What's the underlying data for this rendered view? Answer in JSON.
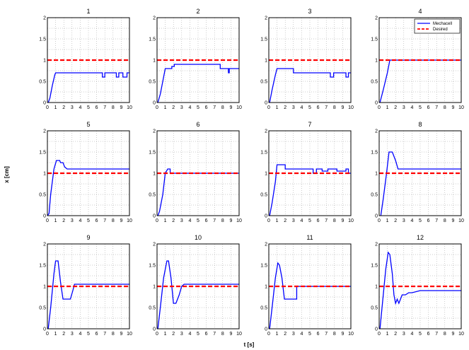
{
  "figure": {
    "xlabel": "t [s]",
    "ylabel": "x [cm]"
  },
  "legend": {
    "entries": [
      {
        "label": "Mechacell",
        "color": "#0000ff",
        "style": "solid"
      },
      {
        "label": "Desired",
        "color": "#ff0000",
        "style": "dashed"
      }
    ],
    "placement": "top-right of subplot 4"
  },
  "chart_data": [
    {
      "type": "line",
      "title": "1",
      "xlim": [
        0,
        10
      ],
      "ylim": [
        0,
        2
      ],
      "xticks": [
        "0",
        "1",
        "2",
        "3",
        "4",
        "5",
        "6",
        "7",
        "8",
        "9",
        "10"
      ],
      "yticks": [
        "0",
        "0.5",
        "1",
        "1.5",
        "2"
      ],
      "grid": true,
      "series": [
        {
          "name": "Mechacell",
          "color": "#0000ff",
          "x": [
            0.1,
            0.3,
            0.6,
            0.9,
            1.0,
            1.1,
            6.7,
            6.7,
            7.0,
            7.0,
            7.2,
            7.2,
            8.4,
            8.4,
            8.7,
            8.7,
            9.2,
            9.2,
            9.7,
            9.7,
            10
          ],
          "y": [
            0,
            0.1,
            0.4,
            0.65,
            0.7,
            0.7,
            0.7,
            0.6,
            0.6,
            0.7,
            0.7,
            0.7,
            0.7,
            0.6,
            0.6,
            0.7,
            0.7,
            0.6,
            0.6,
            0.7,
            0.7
          ]
        },
        {
          "name": "Desired",
          "color": "#ff0000",
          "x": [
            0,
            10
          ],
          "y": [
            1,
            1
          ]
        }
      ]
    },
    {
      "type": "line",
      "title": "2",
      "xlim": [
        0,
        10
      ],
      "ylim": [
        0,
        2
      ],
      "xticks": [
        "0",
        "1",
        "2",
        "3",
        "4",
        "5",
        "6",
        "7",
        "8",
        "9",
        "10"
      ],
      "yticks": [
        "0",
        "0.5",
        "1",
        "1.5",
        "2"
      ],
      "grid": true,
      "series": [
        {
          "name": "Mechacell",
          "color": "#0000ff",
          "x": [
            0.1,
            0.4,
            0.8,
            1.0,
            1.1,
            1.8,
            1.8,
            2.1,
            2.1,
            7.7,
            7.7,
            8.7,
            8.7,
            8.8,
            8.8,
            10
          ],
          "y": [
            0,
            0.2,
            0.6,
            0.8,
            0.8,
            0.8,
            0.85,
            0.85,
            0.9,
            0.9,
            0.8,
            0.8,
            0.7,
            0.7,
            0.8,
            0.8
          ]
        },
        {
          "name": "Desired",
          "color": "#ff0000",
          "x": [
            0,
            10
          ],
          "y": [
            1,
            1
          ]
        }
      ]
    },
    {
      "type": "line",
      "title": "3",
      "xlim": [
        0,
        10
      ],
      "ylim": [
        0,
        2
      ],
      "xticks": [
        "0",
        "1",
        "2",
        "3",
        "4",
        "5",
        "6",
        "7",
        "8",
        "9",
        "10"
      ],
      "yticks": [
        "0",
        "0.5",
        "1",
        "1.5",
        "2"
      ],
      "grid": true,
      "series": [
        {
          "name": "Mechacell",
          "color": "#0000ff",
          "x": [
            0.1,
            0.4,
            0.8,
            1.0,
            1.2,
            3.0,
            3.0,
            7.5,
            7.5,
            7.9,
            7.9,
            9.4,
            9.4,
            9.7,
            9.7,
            10
          ],
          "y": [
            0,
            0.3,
            0.65,
            0.8,
            0.8,
            0.8,
            0.7,
            0.7,
            0.6,
            0.6,
            0.7,
            0.7,
            0.6,
            0.6,
            0.7,
            0.7
          ]
        },
        {
          "name": "Desired",
          "color": "#ff0000",
          "x": [
            0,
            10
          ],
          "y": [
            1,
            1
          ]
        }
      ]
    },
    {
      "type": "line",
      "title": "4",
      "xlim": [
        0,
        10
      ],
      "ylim": [
        0,
        2
      ],
      "xticks": [
        "0",
        "1",
        "2",
        "3",
        "4",
        "5",
        "6",
        "7",
        "8",
        "9",
        "10"
      ],
      "yticks": [
        "0",
        "0.5",
        "1",
        "1.5",
        "2"
      ],
      "grid": true,
      "series": [
        {
          "name": "Mechacell",
          "color": "#0000ff",
          "x": [
            0.1,
            0.5,
            1.0,
            1.3,
            10
          ],
          "y": [
            0,
            0.3,
            0.7,
            1.0,
            1.0
          ]
        },
        {
          "name": "Desired",
          "color": "#ff0000",
          "x": [
            0,
            10
          ],
          "y": [
            1,
            1
          ]
        }
      ]
    },
    {
      "type": "line",
      "title": "5",
      "xlim": [
        0,
        10
      ],
      "ylim": [
        0,
        2
      ],
      "xticks": [
        "0",
        "1",
        "2",
        "3",
        "4",
        "5",
        "6",
        "7",
        "8",
        "9",
        "10"
      ],
      "yticks": [
        "0",
        "0.5",
        "1",
        "1.5",
        "2"
      ],
      "grid": true,
      "series": [
        {
          "name": "Mechacell",
          "color": "#0000ff",
          "x": [
            0,
            0.2,
            0.4,
            0.8,
            1.1,
            1.5,
            1.6,
            1.9,
            2.1,
            2.4,
            10
          ],
          "y": [
            0,
            0.05,
            0.5,
            1.1,
            1.3,
            1.3,
            1.25,
            1.25,
            1.15,
            1.1,
            1.1
          ]
        },
        {
          "name": "Desired",
          "color": "#ff0000",
          "x": [
            0,
            10
          ],
          "y": [
            1,
            1
          ]
        }
      ]
    },
    {
      "type": "line",
      "title": "6",
      "xlim": [
        0,
        10
      ],
      "ylim": [
        0,
        2
      ],
      "xticks": [
        "0",
        "1",
        "2",
        "3",
        "4",
        "5",
        "6",
        "7",
        "8",
        "9",
        "10"
      ],
      "yticks": [
        "0",
        "0.5",
        "1",
        "1.5",
        "2"
      ],
      "grid": true,
      "series": [
        {
          "name": "Mechacell",
          "color": "#0000ff",
          "x": [
            0.1,
            0.3,
            0.7,
            1.0,
            1.3,
            1.6,
            1.6,
            10
          ],
          "y": [
            0,
            0.1,
            0.5,
            1.0,
            1.1,
            1.1,
            1.0,
            1.0
          ]
        },
        {
          "name": "Desired",
          "color": "#ff0000",
          "x": [
            0,
            10
          ],
          "y": [
            1,
            1
          ]
        }
      ]
    },
    {
      "type": "line",
      "title": "7",
      "xlim": [
        0,
        10
      ],
      "ylim": [
        0,
        2
      ],
      "xticks": [
        "0",
        "1",
        "2",
        "3",
        "4",
        "5",
        "6",
        "7",
        "8",
        "9",
        "10"
      ],
      "yticks": [
        "0",
        "0.5",
        "1",
        "1.5",
        "2"
      ],
      "grid": true,
      "series": [
        {
          "name": "Mechacell",
          "color": "#0000ff",
          "x": [
            0.1,
            0.4,
            0.8,
            1.0,
            1.2,
            2.0,
            2.0,
            5.4,
            5.4,
            5.8,
            5.8,
            6.5,
            6.5,
            7.2,
            7.2,
            8.3,
            8.3,
            9.4,
            9.4,
            9.7,
            9.7,
            10
          ],
          "y": [
            0,
            0.3,
            0.8,
            1.2,
            1.2,
            1.2,
            1.1,
            1.1,
            1.0,
            1.0,
            1.1,
            1.1,
            1.05,
            1.05,
            1.1,
            1.1,
            1.05,
            1.05,
            1.1,
            1.1,
            1.0,
            1.0
          ]
        },
        {
          "name": "Desired",
          "color": "#ff0000",
          "x": [
            0,
            10
          ],
          "y": [
            1,
            1
          ]
        }
      ]
    },
    {
      "type": "line",
      "title": "8",
      "xlim": [
        0,
        10
      ],
      "ylim": [
        0,
        2
      ],
      "xticks": [
        "0",
        "1",
        "2",
        "3",
        "4",
        "5",
        "6",
        "7",
        "8",
        "9",
        "10"
      ],
      "yticks": [
        "0",
        "0.5",
        "1",
        "1.5",
        "2"
      ],
      "grid": true,
      "series": [
        {
          "name": "Mechacell",
          "color": "#0000ff",
          "x": [
            0.2,
            0.5,
            0.9,
            1.2,
            1.6,
            2.0,
            2.3,
            10
          ],
          "y": [
            0,
            0.4,
            1.0,
            1.5,
            1.5,
            1.3,
            1.1,
            1.1
          ]
        },
        {
          "name": "Desired",
          "color": "#ff0000",
          "x": [
            0,
            10
          ],
          "y": [
            1,
            1
          ]
        }
      ]
    },
    {
      "type": "line",
      "title": "9",
      "xlim": [
        0,
        10
      ],
      "ylim": [
        0,
        2
      ],
      "xticks": [
        "0",
        "1",
        "2",
        "3",
        "4",
        "5",
        "6",
        "7",
        "8",
        "9",
        "10"
      ],
      "yticks": [
        "0",
        "0.5",
        "1",
        "1.5",
        "2"
      ],
      "grid": true,
      "series": [
        {
          "name": "Mechacell",
          "color": "#0000ff",
          "x": [
            0.1,
            0.4,
            0.8,
            1.0,
            1.3,
            1.6,
            1.9,
            2.2,
            2.8,
            3.1,
            3.3,
            10
          ],
          "y": [
            0,
            0.5,
            1.3,
            1.6,
            1.6,
            1.1,
            0.7,
            0.7,
            0.7,
            0.9,
            1.05,
            1.05
          ]
        },
        {
          "name": "Desired",
          "color": "#ff0000",
          "x": [
            0,
            10
          ],
          "y": [
            1,
            1
          ]
        }
      ]
    },
    {
      "type": "line",
      "title": "10",
      "xlim": [
        0,
        10
      ],
      "ylim": [
        0,
        2
      ],
      "xticks": [
        "0",
        "1",
        "2",
        "3",
        "4",
        "5",
        "6",
        "7",
        "8",
        "9",
        "10"
      ],
      "yticks": [
        "0",
        "0.5",
        "1",
        "1.5",
        "2"
      ],
      "grid": true,
      "series": [
        {
          "name": "Mechacell",
          "color": "#0000ff",
          "x": [
            0.1,
            0.4,
            0.8,
            1.2,
            1.4,
            1.7,
            2.0,
            2.3,
            2.7,
            3.0,
            3.3,
            10
          ],
          "y": [
            0,
            0.5,
            1.2,
            1.6,
            1.6,
            1.2,
            0.6,
            0.6,
            0.8,
            1.0,
            1.05,
            1.05
          ]
        },
        {
          "name": "Desired",
          "color": "#ff0000",
          "x": [
            0,
            10
          ],
          "y": [
            1,
            1
          ]
        }
      ]
    },
    {
      "type": "line",
      "title": "11",
      "xlim": [
        0,
        10
      ],
      "ylim": [
        0,
        2
      ],
      "xticks": [
        "0",
        "1",
        "2",
        "3",
        "4",
        "5",
        "6",
        "7",
        "8",
        "9",
        "10"
      ],
      "yticks": [
        "0",
        "0.5",
        "1",
        "1.5",
        "2"
      ],
      "grid": true,
      "series": [
        {
          "name": "Mechacell",
          "color": "#0000ff",
          "x": [
            0.1,
            0.4,
            0.8,
            1.1,
            1.3,
            1.6,
            1.9,
            2.2,
            3.4,
            3.4,
            10
          ],
          "y": [
            0,
            0.5,
            1.2,
            1.55,
            1.5,
            1.2,
            0.7,
            0.7,
            0.7,
            1.0,
            1.0
          ]
        },
        {
          "name": "Desired",
          "color": "#ff0000",
          "x": [
            0,
            10
          ],
          "y": [
            1,
            1
          ]
        }
      ]
    },
    {
      "type": "line",
      "title": "12",
      "xlim": [
        0,
        10
      ],
      "ylim": [
        0,
        2
      ],
      "xticks": [
        "0",
        "1",
        "2",
        "3",
        "4",
        "5",
        "6",
        "7",
        "8",
        "9",
        "10"
      ],
      "yticks": [
        "0",
        "0.5",
        "1",
        "1.5",
        "2"
      ],
      "grid": true,
      "series": [
        {
          "name": "Mechacell",
          "color": "#0000ff",
          "x": [
            0.1,
            0.4,
            0.8,
            1.1,
            1.3,
            1.6,
            1.8,
            2.0,
            2.2,
            2.4,
            2.6,
            2.8,
            3.2,
            3.6,
            4.0,
            5.0,
            10
          ],
          "y": [
            0,
            0.6,
            1.4,
            1.8,
            1.75,
            1.3,
            0.8,
            0.6,
            0.7,
            0.6,
            0.7,
            0.8,
            0.8,
            0.85,
            0.85,
            0.9,
            0.9
          ]
        },
        {
          "name": "Desired",
          "color": "#ff0000",
          "x": [
            0,
            10
          ],
          "y": [
            1,
            1
          ]
        }
      ]
    }
  ]
}
